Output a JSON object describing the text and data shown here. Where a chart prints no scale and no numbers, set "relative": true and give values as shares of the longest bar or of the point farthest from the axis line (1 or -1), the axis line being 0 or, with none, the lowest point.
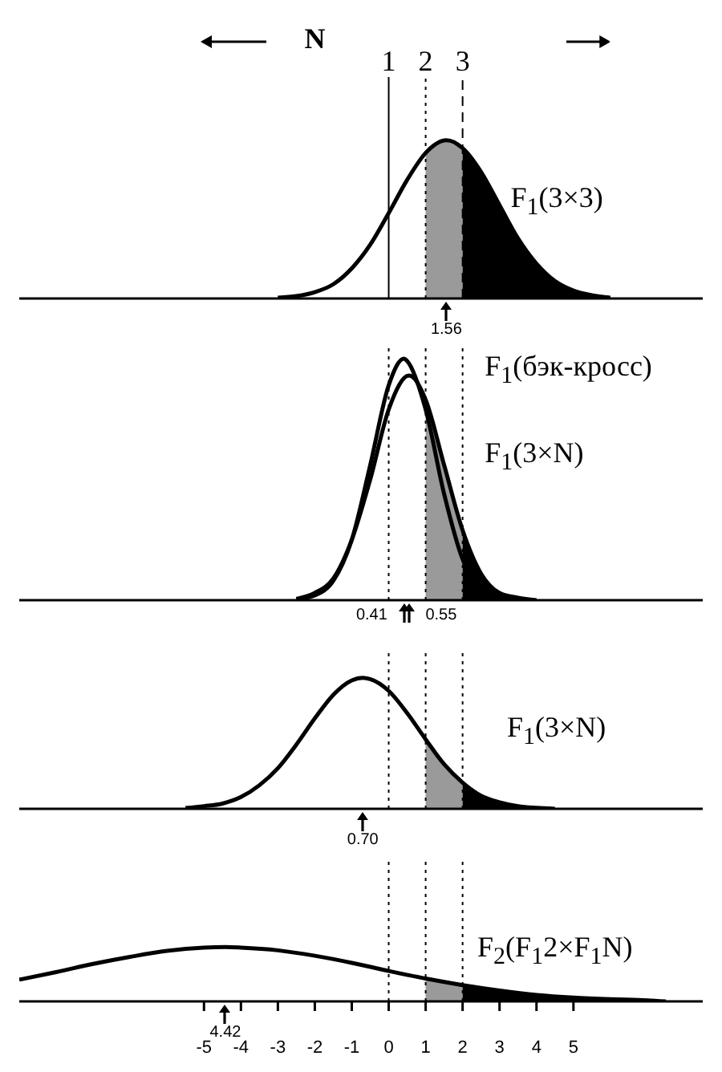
{
  "chart_data": [
    {
      "type": "line",
      "relative": true,
      "xlim": [
        -10,
        8.5
      ],
      "tick_labels": false,
      "annotations": [
        "N",
        "1",
        "2",
        "3",
        "1.56"
      ],
      "ref_lines": [
        {
          "axis": "x",
          "value": 0,
          "line_style": "solid"
        },
        {
          "axis": "x",
          "value": 1,
          "line_style": "dotted"
        },
        {
          "axis": "x",
          "value": 2,
          "line_style": "dashed"
        }
      ],
      "series": [
        {
          "type": "area",
          "color": "#9a9a9a",
          "x": [
            1,
            1.5,
            2
          ],
          "values": [
            0.92,
            1.0,
            0.95
          ]
        },
        {
          "type": "area",
          "color": "#000000",
          "x": [
            2,
            2.5,
            3,
            3.5,
            4,
            4.5,
            5,
            5.5,
            6
          ],
          "values": [
            0.95,
            0.8,
            0.59,
            0.38,
            0.22,
            0.11,
            0.05,
            0.02,
            0.005
          ]
        },
        {
          "name": "F$_{1}$(3×3)",
          "color": "#000000",
          "x": [
            -3,
            -2.5,
            -2,
            -1.5,
            -1,
            -0.5,
            0,
            0.5,
            1,
            1.56,
            2,
            2.5,
            3,
            3.5,
            4,
            4.5,
            5,
            5.5,
            6
          ],
          "values": [
            0.005,
            0.015,
            0.04,
            0.09,
            0.19,
            0.34,
            0.54,
            0.75,
            0.92,
            1,
            0.95,
            0.8,
            0.59,
            0.38,
            0.22,
            0.11,
            0.05,
            0.02,
            0.005
          ]
        }
      ]
    },
    {
      "type": "line",
      "relative": true,
      "xlim": [
        -10,
        8.5
      ],
      "tick_labels": false,
      "annotations": [
        "0.41",
        "0.55"
      ],
      "ref_lines": [
        {
          "axis": "x",
          "value": 0,
          "line_style": "dotted"
        },
        {
          "axis": "x",
          "value": 1,
          "line_style": "dotted"
        },
        {
          "axis": "x",
          "value": 2,
          "line_style": "dotted"
        }
      ],
      "series": [
        {
          "type": "area",
          "color": "#9a9a9a",
          "x": [
            1,
            1.5,
            2
          ],
          "values": [
            0.83,
            0.56,
            0.29
          ]
        },
        {
          "type": "area",
          "color": "#000000",
          "x": [
            2,
            2.5,
            3,
            3.5,
            4
          ],
          "values": [
            0.29,
            0.11,
            0.03,
            0.01,
            0
          ]
        },
        {
          "name": "F$_{1}$(бэк-кросс)",
          "color": "#000000",
          "x": [
            -2.5,
            -2,
            -1.5,
            -1,
            -0.5,
            0,
            0.41,
            0.5,
            1,
            1.5,
            2,
            2.5,
            3,
            3.5
          ],
          "values": [
            0.003,
            0.02,
            0.08,
            0.25,
            0.56,
            0.89,
            1,
            0.99,
            0.79,
            0.44,
            0.17,
            0.05,
            0.01,
            0
          ]
        },
        {
          "name": "F$_{1}$(3×N)",
          "color": "#000000",
          "x": [
            -2.5,
            -2,
            -1.5,
            -1,
            -0.5,
            0,
            0.55,
            1,
            1.5,
            2,
            2.5,
            3,
            3.5,
            4
          ],
          "values": [
            0.005,
            0.03,
            0.09,
            0.25,
            0.5,
            0.79,
            0.93,
            0.83,
            0.56,
            0.29,
            0.11,
            0.03,
            0.01,
            0
          ]
        }
      ]
    },
    {
      "type": "line",
      "relative": true,
      "xlim": [
        -10,
        8.5
      ],
      "tick_labels": false,
      "annotations": [
        "0.70"
      ],
      "ref_lines": [
        {
          "axis": "x",
          "value": 0,
          "line_style": "dotted"
        },
        {
          "axis": "x",
          "value": 1,
          "line_style": "dotted"
        },
        {
          "axis": "x",
          "value": 2,
          "line_style": "dotted"
        }
      ],
      "series": [
        {
          "type": "area",
          "color": "#9a9a9a",
          "x": [
            1,
            1.5,
            2
          ],
          "values": [
            0.53,
            0.34,
            0.2
          ]
        },
        {
          "type": "area",
          "color": "#000000",
          "x": [
            2,
            2.5,
            3,
            3.5,
            4,
            4.5
          ],
          "values": [
            0.2,
            0.1,
            0.05,
            0.02,
            0.007,
            0
          ]
        },
        {
          "name": "F$_{1}$(3×N)",
          "color": "#000000",
          "x": [
            -5.5,
            -5,
            -4.5,
            -4,
            -3.5,
            -3,
            -2.5,
            -2,
            -1.5,
            -1,
            -0.7,
            -0.5,
            0,
            0.5,
            1,
            1.5,
            2,
            2.5,
            3,
            3.5,
            4,
            4.5
          ],
          "values": [
            0.006,
            0.02,
            0.04,
            0.09,
            0.18,
            0.31,
            0.49,
            0.69,
            0.87,
            0.98,
            1,
            0.99,
            0.9,
            0.73,
            0.53,
            0.34,
            0.2,
            0.1,
            0.05,
            0.02,
            0.007,
            0
          ]
        }
      ]
    },
    {
      "type": "line",
      "relative": true,
      "xlim": [
        -10,
        8.5
      ],
      "tick_labels": "x",
      "xticks": [
        -5,
        -4,
        -3,
        -2,
        -1,
        0,
        1,
        2,
        3,
        4,
        5
      ],
      "annotations": [
        "4.42"
      ],
      "ref_lines": [
        {
          "axis": "x",
          "value": 0,
          "line_style": "dotted"
        },
        {
          "axis": "x",
          "value": 1,
          "line_style": "dotted"
        },
        {
          "axis": "x",
          "value": 2,
          "line_style": "dotted"
        }
      ],
      "series": [
        {
          "type": "area",
          "color": "#9a9a9a",
          "x": [
            1,
            1.5,
            2
          ],
          "values": [
            0.42,
            0.36,
            0.3
          ]
        },
        {
          "type": "area",
          "color": "#000000",
          "x": [
            2,
            3,
            4,
            5,
            6,
            7,
            7.5
          ],
          "values": [
            0.3,
            0.2,
            0.12,
            0.07,
            0.04,
            0.02,
            0
          ]
        },
        {
          "name": "F$_{2}$(F$_{1}$2×F$_{1}$N)",
          "color": "#000000",
          "x": [
            -10,
            -9,
            -8,
            -7,
            -6,
            -5,
            -4.42,
            -4,
            -3,
            -2,
            -1,
            0,
            1,
            2,
            3,
            4,
            5,
            6,
            7,
            7.5
          ],
          "values": [
            0.4,
            0.54,
            0.69,
            0.82,
            0.93,
            0.99,
            1,
            0.99,
            0.94,
            0.84,
            0.71,
            0.56,
            0.42,
            0.3,
            0.2,
            0.12,
            0.07,
            0.04,
            0.02,
            0
          ]
        }
      ]
    }
  ]
}
